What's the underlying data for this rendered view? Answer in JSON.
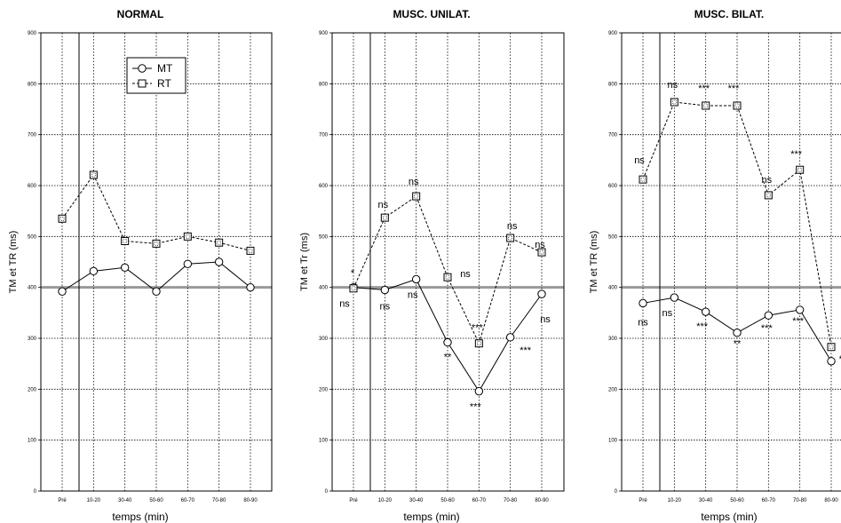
{
  "chart_data": [
    {
      "type": "line",
      "title": "NORMAL",
      "xlabel": "temps (min)",
      "ylabel": "TM et TR (ms)",
      "ylim": [
        0,
        900
      ],
      "yticks": [
        "0",
        "100",
        "200",
        "300",
        "400",
        "500",
        "600",
        "700",
        "800",
        "900"
      ],
      "categories": [
        "Pré",
        "10-20",
        "30-40",
        "50-60",
        "60-70",
        "70-80",
        "80-90"
      ],
      "legend": {
        "position": "top-left",
        "entries": [
          "MT",
          "RT"
        ]
      },
      "series": [
        {
          "name": "MT",
          "marker": "circle",
          "line": "solid",
          "values": [
            392,
            432,
            439,
            392,
            446,
            450,
            400
          ],
          "labels": []
        },
        {
          "name": "RT",
          "marker": "square",
          "line": "dashed",
          "values": [
            535,
            621,
            491,
            486,
            500,
            488,
            472
          ],
          "labels": []
        }
      ]
    },
    {
      "type": "line",
      "title": "MUSC. UNILAT.",
      "xlabel": "temps (min)",
      "ylabel": "TM et Tr (ms)",
      "ylim": [
        0,
        900
      ],
      "yticks": [
        "0",
        "100",
        "200",
        "300",
        "400",
        "500",
        "600",
        "700",
        "800",
        "900"
      ],
      "categories": [
        "Pré",
        "10-20",
        "30-40",
        "50-60",
        "60-70",
        "70-80",
        "80-90"
      ],
      "series": [
        {
          "name": "MT",
          "marker": "circle",
          "line": "solid",
          "values": [
            400,
            395,
            416,
            292,
            196,
            302,
            387
          ],
          "labels": [
            "ns",
            "ns",
            "ns",
            "**",
            "***",
            "***",
            "ns"
          ]
        },
        {
          "name": "RT",
          "marker": "square",
          "line": "dashed",
          "values": [
            398,
            537,
            579,
            420,
            290,
            497,
            469
          ],
          "labels": [
            "*",
            "ns",
            "ns",
            "ns",
            "***",
            "ns",
            "ns"
          ]
        }
      ]
    },
    {
      "type": "line",
      "title": "MUSC. BILAT.",
      "xlabel": "temps (min)",
      "ylabel": "TM et TR (ms)",
      "ylim": [
        0,
        900
      ],
      "yticks": [
        "0",
        "100",
        "200",
        "300",
        "400",
        "500",
        "600",
        "700",
        "800",
        "900"
      ],
      "categories": [
        "Pré",
        "10-20",
        "30-40",
        "50-60",
        "60-70",
        "70-80",
        "80-90"
      ],
      "series": [
        {
          "name": "MT",
          "marker": "circle",
          "line": "solid",
          "values": [
            369,
            380,
            352,
            311,
            345,
            356,
            255
          ],
          "labels": [
            "ns",
            "ns",
            "***",
            "**",
            "***",
            "***",
            "***"
          ]
        },
        {
          "name": "RT",
          "marker": "square",
          "line": "dashed",
          "values": [
            612,
            764,
            757,
            757,
            581,
            631,
            283
          ],
          "labels": [
            "ns",
            "ns",
            "***",
            "***",
            "ns",
            "***",
            "ns"
          ]
        }
      ]
    }
  ]
}
